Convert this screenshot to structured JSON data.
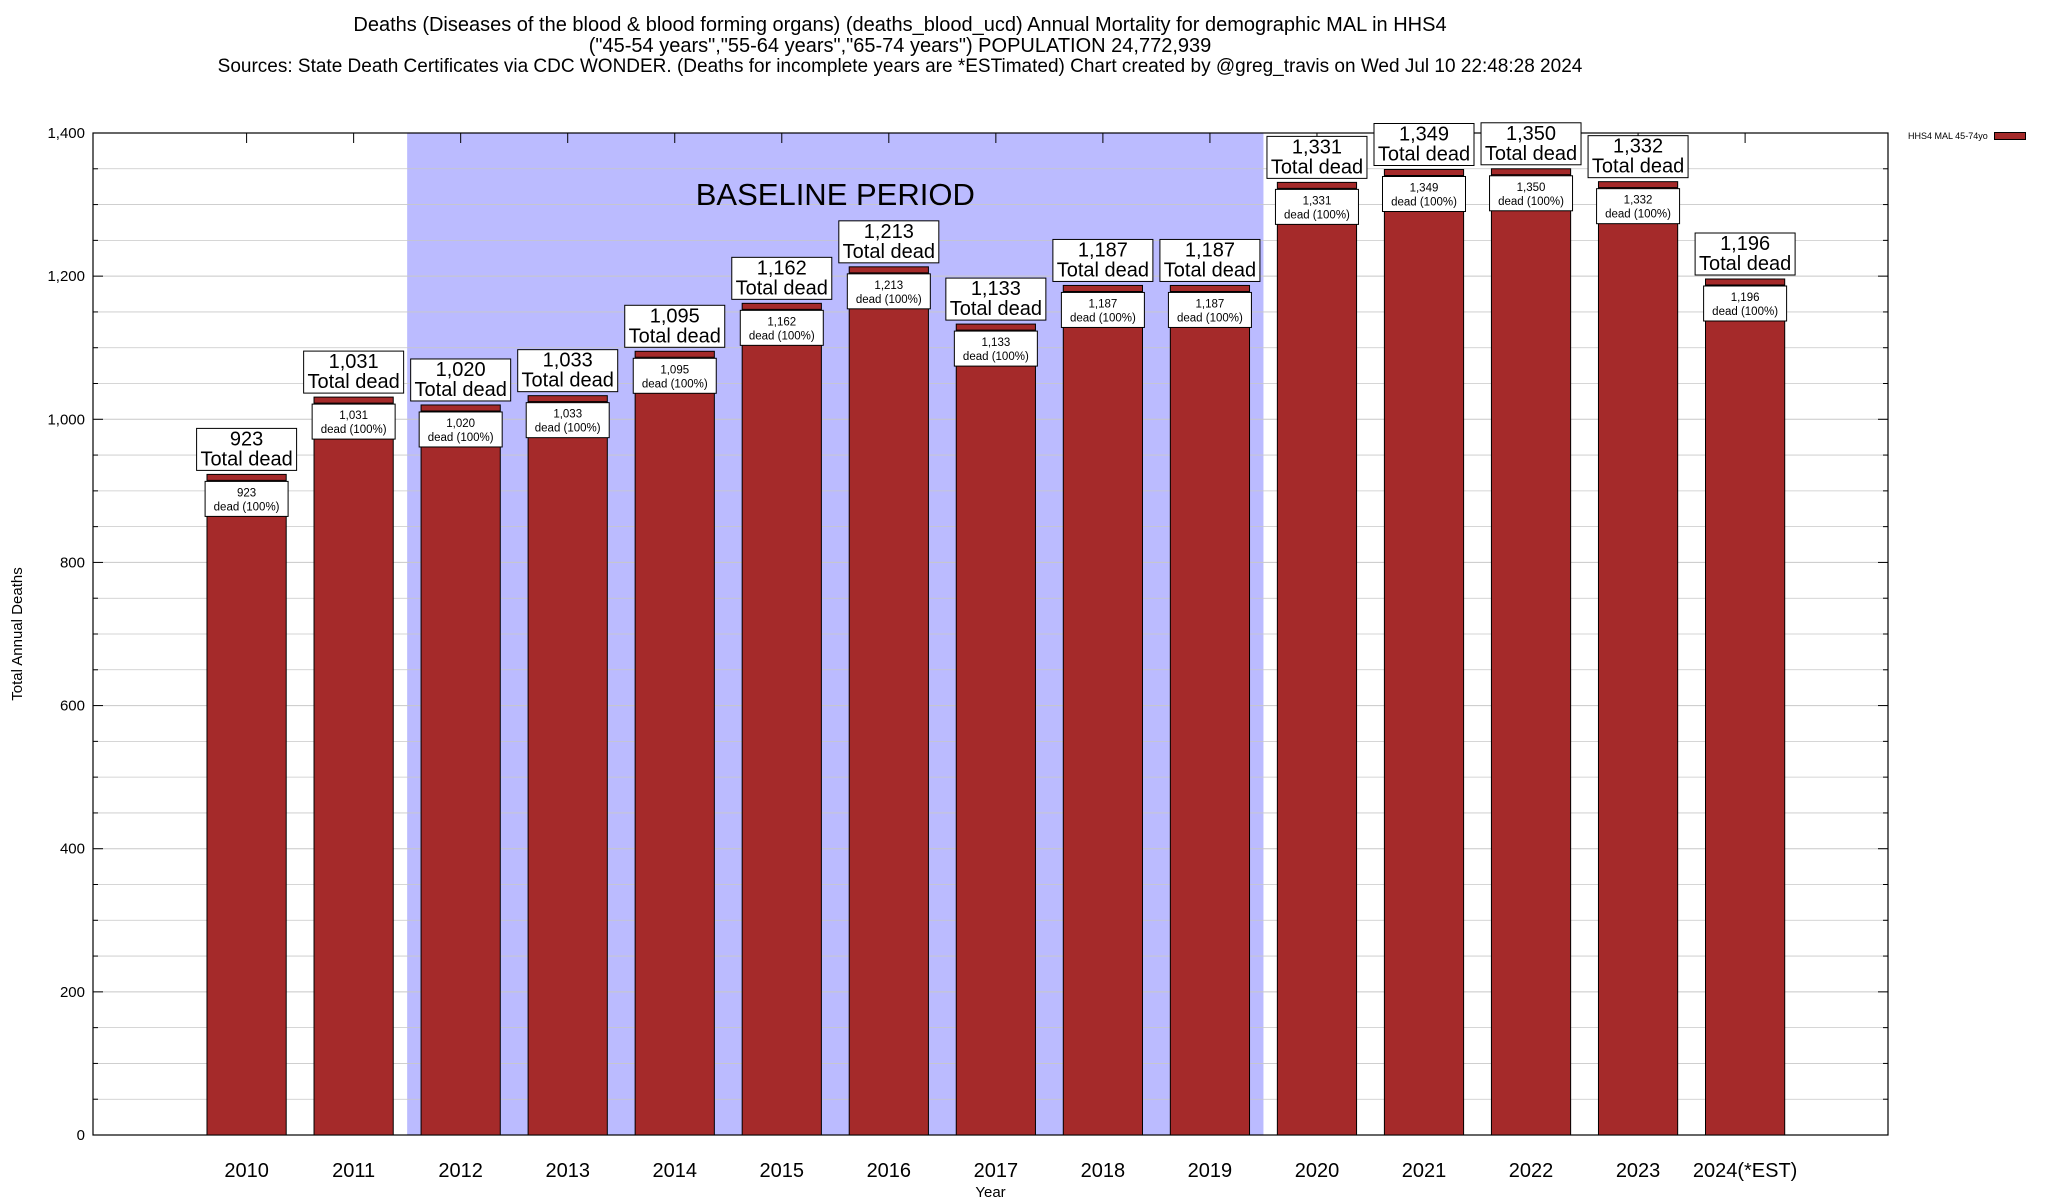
{
  "titles": {
    "line1": "Deaths (Diseases of the blood & blood forming organs) (deaths_blood_ucd) Annual Mortality for demographic MAL in HHS4",
    "line2": "(\"45-54 years\",\"55-64 years\",\"65-74 years\") POPULATION 24,772,939",
    "line3": "Sources: State Death Certificates via CDC WONDER. (Deaths for incomplete years are *ESTimated)                 Chart created by @greg_travis on Wed Jul 10 22:48:28 2024"
  },
  "legend": {
    "label": "HHS4 MAL 45-74yo",
    "color": "#a52a2a"
  },
  "colors": {
    "bar": "#a52a2a",
    "baseline_band": "#bbbbff",
    "grid": "#c8c8c8"
  },
  "chart_data": {
    "type": "bar",
    "xlabel": "Year",
    "ylabel": "Total Annual Deaths",
    "ylim": [
      0,
      1400
    ],
    "yticks": [
      0,
      200,
      400,
      600,
      800,
      1000,
      1200,
      1400
    ],
    "ytick_labels": [
      "0",
      "200",
      "400",
      "600",
      "800",
      "1,000",
      "1,200",
      "1,400"
    ],
    "categories": [
      "2010",
      "2011",
      "2012",
      "2013",
      "2014",
      "2015",
      "2016",
      "2017",
      "2018",
      "2019",
      "2020",
      "2021",
      "2022",
      "2023",
      "2024(*EST)"
    ],
    "series": [
      {
        "name": "HHS4 MAL 45-74yo",
        "values": [
          923,
          1031,
          1020,
          1033,
          1095,
          1162,
          1213,
          1133,
          1187,
          1187,
          1331,
          1349,
          1350,
          1332,
          1196
        ]
      }
    ],
    "value_labels": [
      "923",
      "1,031",
      "1,020",
      "1,033",
      "1,095",
      "1,162",
      "1,213",
      "1,133",
      "1,187",
      "1,187",
      "1,331",
      "1,349",
      "1,350",
      "1,332",
      "1,196"
    ],
    "total_label": "Total dead",
    "inner_label": "dead (100%)",
    "baseline": {
      "label": "BASELINE PERIOD",
      "from": "2012",
      "to": "2019"
    },
    "grid": true
  }
}
